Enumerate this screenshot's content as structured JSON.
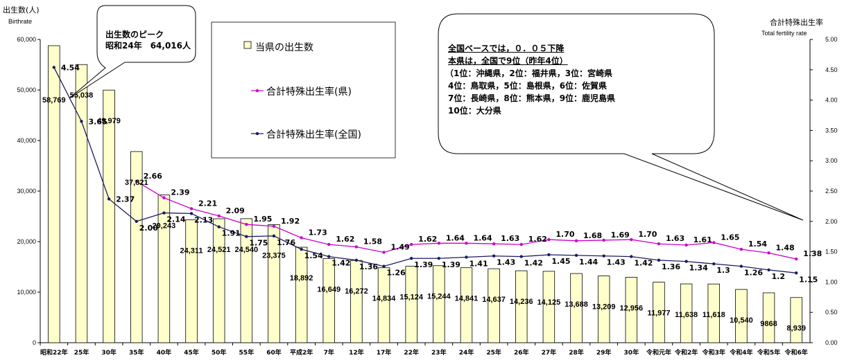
{
  "chart_data": {
    "type": "bar",
    "categories": [
      "昭和22年",
      "25年",
      "30年",
      "35年",
      "40年",
      "45年",
      "50年",
      "55年",
      "60年",
      "平成2年",
      "7年",
      "12年",
      "17年",
      "22年",
      "23年",
      "24年",
      "25年",
      "26年",
      "27年",
      "28年",
      "29年",
      "30年",
      "令和元年",
      "令和2年",
      "令和3年",
      "令和4年",
      "令和5年",
      "令和6年"
    ],
    "left_axis": {
      "title": "出生数(人)",
      "subtitle": "Birthrate",
      "ylim": [
        0,
        60000
      ],
      "ticks": [
        "0",
        "10,000",
        "20,000",
        "30,000",
        "40,000",
        "50,000",
        "60,000"
      ]
    },
    "right_axis": {
      "title": "合計特殊出生率",
      "subtitle": "Total fertility rate",
      "ylim": [
        0,
        5
      ],
      "ticks": [
        "0.00",
        "0.50",
        "1.00",
        "1.50",
        "2.00",
        "2.50",
        "3.00",
        "3.50",
        "4.00",
        "4.50",
        "5.00"
      ]
    },
    "series": [
      {
        "name": "当県の出生数",
        "kind": "bar",
        "axis": "left",
        "color": "#ffffcc",
        "values": [
          58769,
          55038,
          49979,
          37821,
          29243,
          24311,
          24521,
          24540,
          23375,
          18892,
          16649,
          16272,
          14834,
          15124,
          15244,
          14841,
          14637,
          14236,
          14125,
          13688,
          13209,
          12956,
          11977,
          11638,
          11618,
          10540,
          9868,
          8939
        ],
        "labels": [
          "58,769",
          "55,038",
          "49,979",
          "37,821",
          "29,243",
          "24,311",
          "24,521",
          "24,540",
          "23,375",
          "18,892",
          "16,649",
          "16,272",
          "14,834",
          "15,124",
          "15,244",
          "14,841",
          "14,637",
          "14,236",
          "14,125",
          "13,688",
          "13,209",
          "12,956",
          "11,977",
          "11,638",
          "11,618",
          "10,540",
          "9868",
          "8,939"
        ]
      },
      {
        "name": "合計特殊出生率(県)",
        "kind": "line",
        "axis": "right",
        "color": "#cc00cc",
        "values": [
          null,
          null,
          null,
          2.66,
          2.39,
          2.21,
          2.09,
          1.95,
          1.92,
          1.73,
          1.62,
          1.58,
          1.49,
          1.62,
          1.64,
          1.64,
          1.63,
          1.62,
          1.7,
          1.68,
          1.69,
          1.7,
          1.63,
          1.61,
          1.65,
          1.54,
          1.48,
          1.38
        ],
        "labels": [
          "",
          "",
          "",
          "2.66",
          "2.39",
          "2.21",
          "2.09",
          "1.95",
          "1.92",
          "1.73",
          "1.62",
          "1.58",
          "1.49",
          "1.62",
          "1.64",
          "1.64",
          "1.63",
          "1.62",
          "1.70",
          "1.68",
          "1.69",
          "1.70",
          "1.63",
          "1.61",
          "1.65",
          "1.54",
          "1.48",
          "1.38"
        ]
      },
      {
        "name": "合計特殊出生率(全国)",
        "kind": "line",
        "axis": "right",
        "color": "#1a1a66",
        "values": [
          4.54,
          3.65,
          2.37,
          2.0,
          2.14,
          2.13,
          1.91,
          1.75,
          1.76,
          1.54,
          1.42,
          1.36,
          1.26,
          1.39,
          1.39,
          1.41,
          1.43,
          1.42,
          1.45,
          1.44,
          1.43,
          1.42,
          1.36,
          1.34,
          1.3,
          1.26,
          1.2,
          1.15
        ],
        "labels": [
          "4.54",
          "3.65",
          "2.37",
          "2.00",
          "2.14",
          "2.13",
          "1.91",
          "1.75",
          "1.76",
          "1.54",
          "1.42",
          "1.36",
          "1.26",
          "1.39",
          "1.39",
          "1.41",
          "1.43",
          "1.42",
          "1.45",
          "1.44",
          "1.43",
          "1.42",
          "1.36",
          "1.34",
          "1.3",
          "1.26",
          "1.2",
          "1.15"
        ]
      }
    ],
    "legend_position": "top-center",
    "grid": false
  },
  "callouts": {
    "peak": [
      "出生数のピーク",
      "昭和24年　64,016人"
    ],
    "note": [
      "全国ベースでは，０．０５下降",
      "本県は，全国で9位（昨年4位）",
      "（1位：沖縄県，2位：福井県，3位：宮崎県",
      " 4位：鳥取県，5位：島根県，6位：佐賀県",
      " 7位：長崎県，8位：熊本県，9位：鹿児島県",
      "10位：大分県"
    ]
  }
}
